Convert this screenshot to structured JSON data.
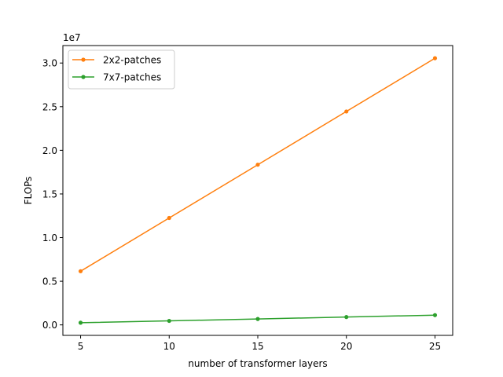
{
  "chart_data": {
    "type": "line",
    "xlabel": "number of transformer layers",
    "ylabel": "FLOPs",
    "y_offset_label": "1e7",
    "y_scale_factor": 10000000,
    "x": [
      5,
      10,
      15,
      20,
      25
    ],
    "xlim": [
      4,
      26
    ],
    "ylim": [
      -1200000,
      32000000
    ],
    "x_ticks": [
      5,
      10,
      15,
      20,
      25
    ],
    "x_tick_labels": [
      "5",
      "10",
      "15",
      "20",
      "25"
    ],
    "y_ticks": [
      0,
      5000000,
      10000000,
      15000000,
      20000000,
      25000000,
      30000000
    ],
    "y_tick_labels": [
      "0.0",
      "0.5",
      "1.0",
      "1.5",
      "2.0",
      "2.5",
      "3.0"
    ],
    "grid": false,
    "legend_position": "upper-left",
    "series": [
      {
        "name": "2x2-patches",
        "color": "#ff7f0e",
        "marker": "circle",
        "values": [
          6150000,
          12250000,
          18350000,
          24450000,
          30550000
        ]
      },
      {
        "name": "7x7-patches",
        "color": "#2ca02c",
        "marker": "circle",
        "values": [
          250000,
          460000,
          680000,
          900000,
          1120000
        ]
      }
    ]
  }
}
